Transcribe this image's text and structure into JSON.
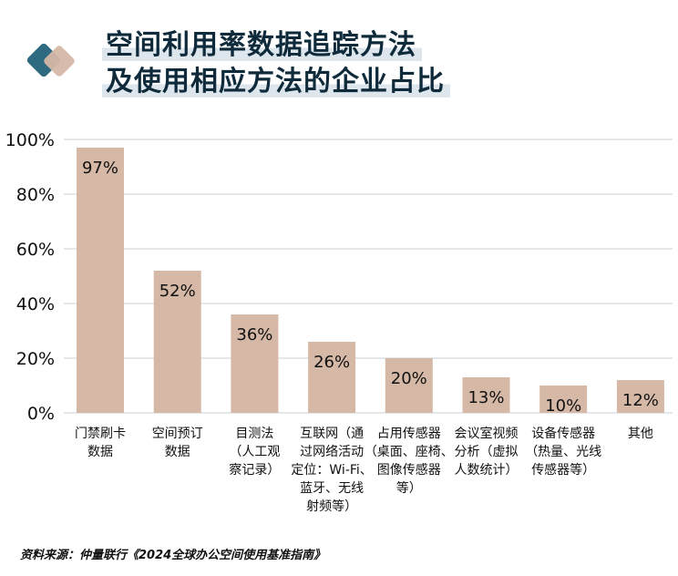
{
  "title": {
    "line1": "空间利用率数据追踪方法",
    "line2": "及使用相应方法的企业占比"
  },
  "colors": {
    "bar": "#d5b8a6",
    "logo_back": "#2f6a80",
    "logo_front": "#d5b8a6",
    "grid": "#c8d0d4",
    "title": "#0f2a3a"
  },
  "chart_data": {
    "type": "bar",
    "categories": [
      [
        "门禁刷卡",
        "数据"
      ],
      [
        "空间预订",
        "数据"
      ],
      [
        "目测法",
        "（人工观",
        "察记录）"
      ],
      [
        "互联网（通",
        "过网络活动",
        "定位：Wi-Fi、",
        "蓝牙、无线",
        "射频等）"
      ],
      [
        "占用传感器",
        "（桌面、座椅、",
        "图像传感器",
        "等）"
      ],
      [
        "会议室视频",
        "分析（虚拟",
        "人数统计）"
      ],
      [
        "设备传感器",
        "（热量、光线",
        "传感器等）"
      ],
      [
        "其他"
      ]
    ],
    "values": [
      97,
      52,
      36,
      26,
      20,
      13,
      10,
      12
    ],
    "value_labels": [
      "97%",
      "52%",
      "36%",
      "26%",
      "20%",
      "13%",
      "10%",
      "12%"
    ],
    "yticks": [
      "0%",
      "20%",
      "40%",
      "60%",
      "80%",
      "100%"
    ],
    "ylim": [
      0,
      100
    ],
    "grid": true,
    "xlabel": "",
    "ylabel": ""
  },
  "source": "资料来源：仲量联行《2024全球办公空间使用基准指南》"
}
